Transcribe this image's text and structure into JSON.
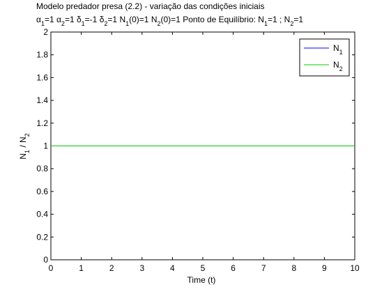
{
  "chart_data": {
    "type": "line",
    "title_line1": "Modelo predador presa (2.2) - variação das condições iniciais",
    "title_line2_parts": [
      {
        "text": "α",
        "sub": "1",
        "tail": "=1"
      },
      {
        "text": "α",
        "sub": "2",
        "tail": "=1"
      },
      {
        "text": "δ",
        "sub": "1",
        "tail": "=-1"
      },
      {
        "text": "δ",
        "sub": "2",
        "tail": "=1"
      },
      {
        "text": "N",
        "sub": "1",
        "tail": "(0)=1"
      },
      {
        "text": "N",
        "sub": "2",
        "tail": "(0)=1"
      }
    ],
    "equilibrium_label": "Ponto de Equilíbrio: N",
    "equilibrium_parts": [
      {
        "sub": "1",
        "tail": "=1 ;  N"
      },
      {
        "sub": "2",
        "tail": "=1"
      }
    ],
    "xlabel": "Time (t)",
    "ylabel_base": "N",
    "ylabel_sub1": "1",
    "ylabel_mid": " / N",
    "ylabel_sub2": "2",
    "xlim": [
      0,
      10
    ],
    "ylim": [
      0,
      2
    ],
    "xticks": [
      "0",
      "1",
      "2",
      "3",
      "4",
      "5",
      "6",
      "7",
      "8",
      "9",
      "10"
    ],
    "yticks": [
      "0",
      "0.2",
      "0.4",
      "0.6",
      "0.8",
      "1",
      "1.2",
      "1.4",
      "1.6",
      "1.8",
      "2"
    ],
    "grid": false,
    "legend_position": "top-right",
    "series": [
      {
        "name_base": "N",
        "name_sub": "1",
        "color": "#0000ff",
        "x": [
          0,
          10
        ],
        "y": [
          1,
          1
        ]
      },
      {
        "name_base": "N",
        "name_sub": "2",
        "color": "#00cc00",
        "x": [
          0,
          10
        ],
        "y": [
          1,
          1
        ]
      }
    ]
  }
}
